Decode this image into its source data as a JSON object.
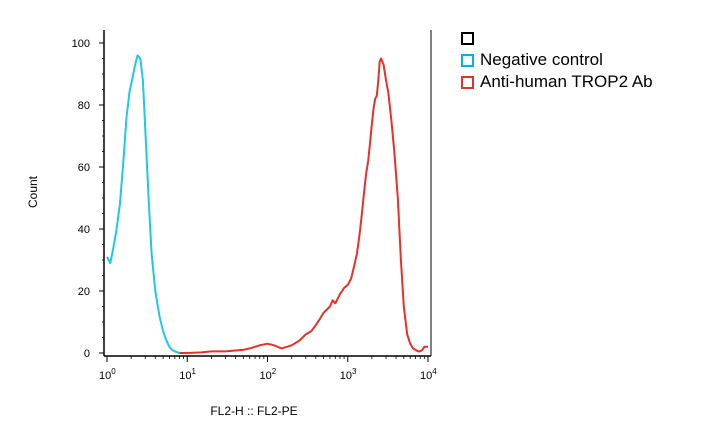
{
  "chart_data": {
    "type": "line",
    "xlabel": "FL2-H :: FL2-PE",
    "ylabel": "Count",
    "xscale": "log",
    "xlim": [
      1,
      10000
    ],
    "ylim": [
      0,
      100
    ],
    "xticks": [
      {
        "base": "10",
        "exp": "0",
        "value": 1
      },
      {
        "base": "10",
        "exp": "1",
        "value": 10
      },
      {
        "base": "10",
        "exp": "2",
        "value": 100
      },
      {
        "base": "10",
        "exp": "3",
        "value": 1000
      },
      {
        "base": "10",
        "exp": "4",
        "value": 10000
      }
    ],
    "yticks": [
      "0",
      "20",
      "40",
      "60",
      "80",
      "100"
    ],
    "grid": false,
    "legend_position": "right",
    "legend": [
      {
        "label": "",
        "color": "#000000"
      },
      {
        "label": "Negative control",
        "color": "#00b0f0"
      },
      {
        "label": "Anti-human TROP2 Ab",
        "color": "#e8302a"
      }
    ],
    "series": [
      {
        "name": "Negative control",
        "color": "#1ec8e6",
        "x": [
          1.0,
          1.1,
          1.2,
          1.3,
          1.45,
          1.6,
          1.75,
          1.9,
          2.05,
          2.2,
          2.4,
          2.6,
          2.8,
          3.0,
          3.3,
          3.6,
          4.0,
          4.5,
          5.0,
          5.5,
          6.0,
          6.5,
          7.0,
          8.0,
          9.0
        ],
        "y": [
          31,
          29,
          34,
          39,
          48,
          62,
          76,
          84,
          88,
          92,
          96,
          95,
          88,
          72,
          50,
          32,
          20,
          12,
          7,
          4,
          2,
          1,
          0.5,
          0,
          0
        ]
      },
      {
        "name": "Anti-human TROP2 Ab",
        "color": "#e8302a",
        "x": [
          8,
          10,
          15,
          20,
          30,
          40,
          50,
          60,
          70,
          80,
          100,
          120,
          150,
          200,
          250,
          300,
          350,
          400,
          450,
          500,
          550,
          600,
          650,
          700,
          800,
          900,
          1000,
          1100,
          1200,
          1300,
          1400,
          1500,
          1600,
          1700,
          1800,
          1900,
          2000,
          2100,
          2200,
          2300,
          2400,
          2500,
          2600,
          2800,
          3000,
          3200,
          3500,
          3800,
          4200,
          4600,
          5000,
          5500,
          6000,
          6500,
          7000,
          7500,
          8000,
          8500,
          9000,
          10000
        ],
        "y": [
          0,
          0,
          0.2,
          0.5,
          0.5,
          0.8,
          1,
          1.5,
          2,
          2.5,
          3,
          2.5,
          1.5,
          2.5,
          4,
          6,
          7,
          9,
          11,
          13,
          14,
          15,
          17,
          16,
          19,
          21,
          22,
          24,
          28,
          32,
          38,
          45,
          52,
          58,
          62,
          68,
          74,
          79,
          82,
          83,
          88,
          94,
          95,
          93,
          88,
          84,
          75,
          65,
          50,
          30,
          15,
          6,
          3,
          1.5,
          1,
          0.5,
          0.5,
          1,
          2,
          2
        ]
      }
    ]
  }
}
